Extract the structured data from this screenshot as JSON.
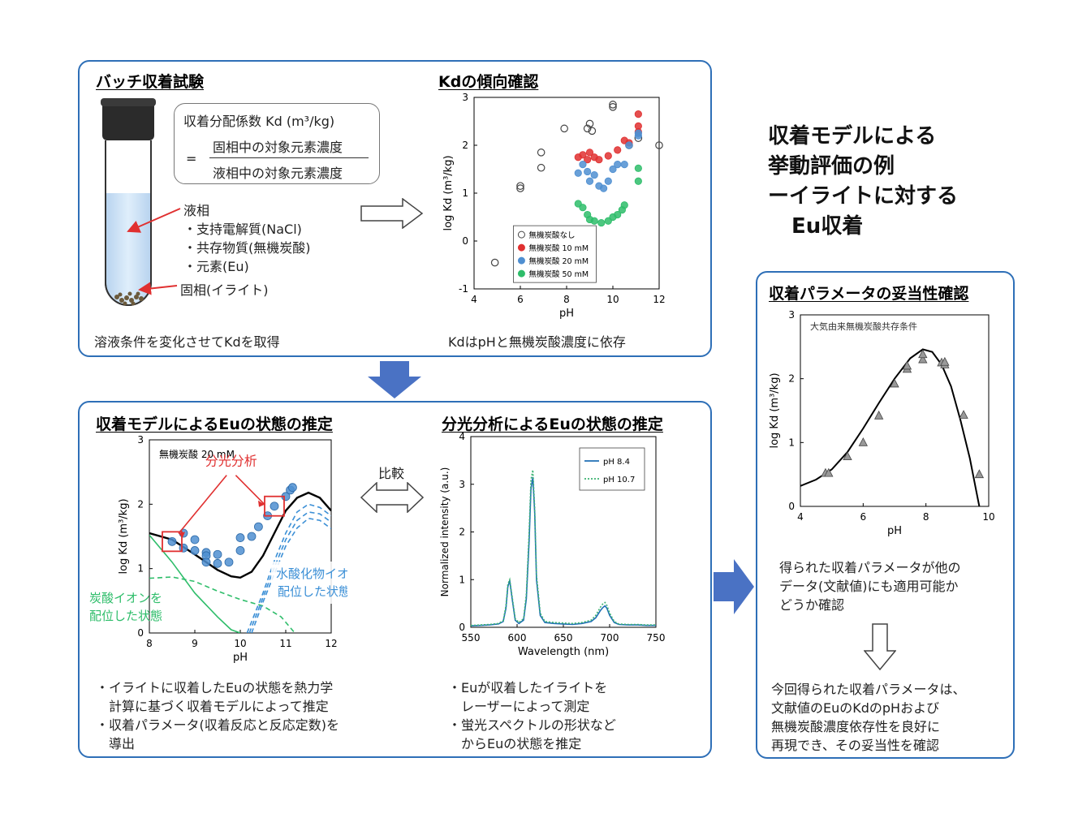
{
  "top_panel": {
    "batch_title": "バッチ収着試験",
    "kd_formula_label": "収着分配係数 Kd (m³/kg)",
    "kd_eq": "=",
    "kd_numerator": "固相中の対象元素濃度",
    "kd_denominator": "液相中の対象元素濃度",
    "liquid_phase": "液相",
    "liquid_items": [
      "・支持電解質(NaCl)",
      "・共存物質(無機炭酸)",
      "・元素(Eu)"
    ],
    "solid_phase": "固相(イライト)",
    "batch_caption": "溶液条件を変化させてKdを取得",
    "trend_title": "Kdの傾向確認",
    "trend_caption": "KdはpHと無機炭酸濃度に依存"
  },
  "right_heading": [
    "収着モデルによる",
    "挙動評価の例",
    "ーイライトに対する",
    "Eu収着"
  ],
  "bottom_panel": {
    "model_title": "収着モデルによるEuの状態の推定",
    "spectro_title": "分光分析によるEuの状態の推定",
    "compare_label": "比較",
    "model_notes": [
      "・イライトに収着したEuの状態を熱力学",
      "　計算に基づく収着モデルによって推定",
      "・収着パラメータ(収着反応と反応定数)を",
      "　導出"
    ],
    "spectro_notes": [
      "・Euが収着したイライトを",
      "　レーザーによって測定",
      "・蛍光スペクトルの形状など",
      "　からEuの状態を推定"
    ]
  },
  "validation_panel": {
    "title": "収着パラメータの妥当性確認",
    "text1": [
      "得られた収着パラメータが他の",
      "データ(文献値)にも適用可能か",
      "どうか確認"
    ],
    "text2": [
      "今回得られた収着パラメータは、",
      "文献値のEuのKdのpHおよび",
      "無機炭酸濃度依存性を良好に",
      "再現でき、その妥当性を確認"
    ]
  },
  "colors": {
    "accent_blue": "#2e6fb7",
    "arrow_blue": "#4a72c4",
    "red": "#e03030",
    "green": "#2ebd6a",
    "blue_marker": "#4f8fd1"
  },
  "chart_data": [
    {
      "id": "kd-trend",
      "type": "scatter",
      "xlabel": "pH",
      "ylabel": "log Kd (m³/kg)",
      "xlim": [
        4,
        12
      ],
      "ylim": [
        -1,
        3
      ],
      "xticks": [
        4,
        6,
        8,
        10,
        12
      ],
      "yticks": [
        -1,
        0,
        1,
        2,
        3
      ],
      "legend_position": "bottom-left",
      "series": [
        {
          "name": "無機炭酸なし",
          "color": "#555555",
          "filled": false,
          "points": [
            [
              4.9,
              -0.45
            ],
            [
              6.0,
              1.1
            ],
            [
              6.0,
              1.15
            ],
            [
              6.9,
              1.85
            ],
            [
              6.9,
              1.53
            ],
            [
              7.9,
              2.35
            ],
            [
              8.9,
              2.35
            ],
            [
              9.0,
              2.45
            ],
            [
              9.1,
              2.3
            ],
            [
              10.0,
              2.8
            ],
            [
              10.0,
              2.85
            ],
            [
              10.7,
              2.0
            ],
            [
              11.1,
              2.15
            ],
            [
              12.0,
              2.0
            ]
          ]
        },
        {
          "name": "無機炭酸 10 mM",
          "color": "#e03030",
          "filled": true,
          "points": [
            [
              8.5,
              1.75
            ],
            [
              8.7,
              1.8
            ],
            [
              8.9,
              1.7
            ],
            [
              9.0,
              1.85
            ],
            [
              9.2,
              1.75
            ],
            [
              9.4,
              1.7
            ],
            [
              9.8,
              1.78
            ],
            [
              10.2,
              1.9
            ],
            [
              10.5,
              2.1
            ],
            [
              10.7,
              2.05
            ],
            [
              11.1,
              2.4
            ],
            [
              11.1,
              2.65
            ],
            [
              11.1,
              2.28
            ]
          ]
        },
        {
          "name": "無機炭酸 20 mM",
          "color": "#4f8fd1",
          "filled": true,
          "points": [
            [
              8.5,
              1.42
            ],
            [
              8.7,
              1.6
            ],
            [
              8.9,
              1.45
            ],
            [
              9.0,
              1.25
            ],
            [
              9.2,
              1.38
            ],
            [
              9.4,
              1.15
            ],
            [
              9.6,
              1.1
            ],
            [
              9.8,
              1.25
            ],
            [
              10.0,
              1.5
            ],
            [
              10.2,
              1.6
            ],
            [
              10.5,
              1.6
            ],
            [
              10.7,
              2.0
            ],
            [
              11.1,
              2.2
            ],
            [
              11.1,
              2.25
            ]
          ]
        },
        {
          "name": "無機炭酸 50 mM",
          "color": "#2ebd6a",
          "filled": true,
          "points": [
            [
              8.5,
              0.78
            ],
            [
              8.7,
              0.7
            ],
            [
              8.9,
              0.55
            ],
            [
              9.0,
              0.45
            ],
            [
              9.2,
              0.42
            ],
            [
              9.5,
              0.38
            ],
            [
              9.8,
              0.42
            ],
            [
              10.0,
              0.5
            ],
            [
              10.2,
              0.55
            ],
            [
              10.4,
              0.65
            ],
            [
              10.5,
              0.75
            ],
            [
              11.1,
              1.25
            ],
            [
              11.1,
              1.52
            ]
          ]
        }
      ]
    },
    {
      "id": "model-fit",
      "type": "line",
      "xlabel": "pH",
      "ylabel": "log Kd (m³/kg)",
      "xlim": [
        8,
        12
      ],
      "ylim": [
        0,
        3
      ],
      "xticks": [
        8,
        9,
        10,
        11,
        12
      ],
      "yticks": [
        0,
        1,
        2,
        3
      ],
      "condition_label": "無機炭酸 20 mM",
      "annotations": {
        "spectroscopy": "分光分析",
        "carbonate": [
          "炭酸イオンを",
          "配位した状態"
        ],
        "hydroxide": [
          "水酸化物イオンを",
          "配位した状態"
        ]
      },
      "points": [
        [
          8.5,
          1.42
        ],
        [
          8.75,
          1.55
        ],
        [
          8.75,
          1.32
        ],
        [
          9.0,
          1.45
        ],
        [
          9.0,
          1.28
        ],
        [
          9.25,
          1.25
        ],
        [
          9.25,
          1.2
        ],
        [
          9.25,
          1.1
        ],
        [
          9.5,
          1.22
        ],
        [
          9.5,
          1.08
        ],
        [
          9.75,
          1.1
        ],
        [
          10.0,
          1.28
        ],
        [
          10.0,
          1.48
        ],
        [
          10.25,
          1.5
        ],
        [
          10.4,
          1.65
        ],
        [
          10.6,
          1.82
        ],
        [
          10.75,
          1.97
        ],
        [
          11.0,
          2.12
        ],
        [
          11.1,
          2.22
        ],
        [
          11.15,
          2.26
        ]
      ],
      "series": [
        {
          "name": "total",
          "color": "#000000",
          "dash": "",
          "x": [
            8.0,
            8.5,
            9.0,
            9.5,
            9.8,
            10.0,
            10.25,
            10.5,
            10.75,
            11.0,
            11.25,
            11.5,
            11.75,
            12.0
          ],
          "y": [
            1.55,
            1.45,
            1.22,
            0.98,
            0.88,
            0.86,
            0.95,
            1.2,
            1.55,
            1.9,
            2.1,
            2.18,
            2.1,
            1.9
          ]
        },
        {
          "name": "carbonate-solid",
          "color": "#2ebd6a",
          "dash": "",
          "x": [
            8.0,
            8.5,
            9.0,
            9.5,
            9.8,
            10.0
          ],
          "y": [
            1.52,
            1.1,
            0.62,
            0.25,
            0.05,
            0.0
          ]
        },
        {
          "name": "carbonate-dashed",
          "color": "#2ebd6a",
          "dash": "6,4",
          "x": [
            8.0,
            8.5,
            9.0,
            9.5,
            10.0,
            10.5,
            10.9,
            11.2
          ],
          "y": [
            0.85,
            0.87,
            0.8,
            0.65,
            0.52,
            0.42,
            0.25,
            0.0
          ]
        },
        {
          "name": "hydroxide-1",
          "color": "#3b8fd6",
          "dash": "6,4",
          "x": [
            10.15,
            10.5,
            10.75,
            11.0,
            11.25,
            11.5,
            11.75,
            12.0
          ],
          "y": [
            0.0,
            0.62,
            1.12,
            1.55,
            1.88,
            2.0,
            1.95,
            1.82
          ]
        },
        {
          "name": "hydroxide-2",
          "color": "#3b8fd6",
          "dash": "6,4",
          "x": [
            10.2,
            10.5,
            10.75,
            11.0,
            11.25,
            11.5,
            11.75,
            12.0
          ],
          "y": [
            0.0,
            0.55,
            1.02,
            1.45,
            1.75,
            1.88,
            1.85,
            1.72
          ]
        },
        {
          "name": "hydroxide-3",
          "color": "#3b8fd6",
          "dash": "6,4",
          "x": [
            10.25,
            10.5,
            10.75,
            11.0,
            11.25,
            11.5,
            11.75,
            12.0
          ],
          "y": [
            0.0,
            0.48,
            0.92,
            1.35,
            1.63,
            1.78,
            1.75,
            1.62
          ]
        }
      ]
    },
    {
      "id": "spectrum",
      "type": "line",
      "xlabel": "Wavelength (nm)",
      "ylabel": "Normalized intensity (a.u.)",
      "xlim": [
        550,
        750
      ],
      "ylim": [
        0,
        4
      ],
      "xticks": [
        550,
        600,
        650,
        700,
        750
      ],
      "yticks": [
        0,
        1,
        2,
        3,
        4
      ],
      "legend_position": "top-right",
      "series": [
        {
          "name": "pH 8.4",
          "color": "#1f6fb5",
          "dash": "",
          "x": [
            550,
            560,
            570,
            580,
            585,
            588,
            590,
            592,
            595,
            598,
            602,
            607,
            610,
            613,
            615,
            617,
            619,
            621,
            625,
            630,
            640,
            650,
            660,
            670,
            680,
            685,
            690,
            693,
            695,
            697,
            700,
            705,
            710,
            720,
            730,
            740,
            750
          ],
          "y": [
            0.03,
            0.04,
            0.05,
            0.07,
            0.12,
            0.4,
            0.85,
            0.98,
            0.55,
            0.15,
            0.08,
            0.15,
            0.6,
            1.8,
            2.9,
            3.15,
            2.4,
            1.0,
            0.25,
            0.1,
            0.08,
            0.07,
            0.06,
            0.08,
            0.12,
            0.2,
            0.35,
            0.42,
            0.45,
            0.4,
            0.25,
            0.1,
            0.06,
            0.05,
            0.05,
            0.04,
            0.04
          ]
        },
        {
          "name": "pH 10.7",
          "color": "#3cb371",
          "dash": "2,2",
          "x": [
            550,
            560,
            570,
            580,
            585,
            588,
            590,
            592,
            595,
            598,
            602,
            607,
            610,
            613,
            615,
            617,
            619,
            621,
            625,
            630,
            640,
            650,
            660,
            670,
            680,
            685,
            690,
            693,
            695,
            697,
            700,
            705,
            710,
            720,
            730,
            740,
            750
          ],
          "y": [
            0.04,
            0.05,
            0.06,
            0.08,
            0.14,
            0.45,
            0.9,
            1.0,
            0.6,
            0.18,
            0.1,
            0.18,
            0.7,
            2.0,
            3.1,
            3.3,
            2.5,
            1.1,
            0.3,
            0.12,
            0.1,
            0.09,
            0.08,
            0.1,
            0.15,
            0.25,
            0.42,
            0.5,
            0.52,
            0.46,
            0.3,
            0.12,
            0.07,
            0.06,
            0.06,
            0.05,
            0.05
          ]
        }
      ]
    },
    {
      "id": "validation",
      "type": "line",
      "xlabel": "pH",
      "ylabel": "log Kd (m³/kg)",
      "xlim": [
        4,
        10
      ],
      "ylim": [
        0,
        3
      ],
      "xticks": [
        4,
        6,
        8,
        10
      ],
      "yticks": [
        0,
        1,
        2,
        3
      ],
      "condition_label": "大気由来無機炭酸共存条件",
      "points": [
        [
          4.8,
          0.52
        ],
        [
          4.9,
          0.52
        ],
        [
          5.5,
          0.78
        ],
        [
          6.0,
          1.0
        ],
        [
          6.5,
          1.42
        ],
        [
          7.0,
          1.92
        ],
        [
          7.4,
          2.15
        ],
        [
          7.4,
          2.2
        ],
        [
          7.9,
          2.3
        ],
        [
          7.9,
          2.38
        ],
        [
          8.5,
          2.25
        ],
        [
          8.6,
          2.22
        ],
        [
          8.6,
          2.26
        ],
        [
          9.2,
          1.43
        ],
        [
          9.7,
          0.5
        ]
      ],
      "series": [
        {
          "name": "model",
          "color": "#000000",
          "dash": "",
          "x": [
            4.0,
            4.5,
            5.0,
            5.5,
            6.0,
            6.5,
            7.0,
            7.5,
            7.9,
            8.2,
            8.5,
            8.8,
            9.1,
            9.4,
            9.6,
            9.7
          ],
          "y": [
            0.32,
            0.42,
            0.58,
            0.85,
            1.22,
            1.62,
            2.0,
            2.32,
            2.46,
            2.42,
            2.22,
            1.88,
            1.35,
            0.75,
            0.25,
            0.0
          ]
        }
      ]
    }
  ]
}
